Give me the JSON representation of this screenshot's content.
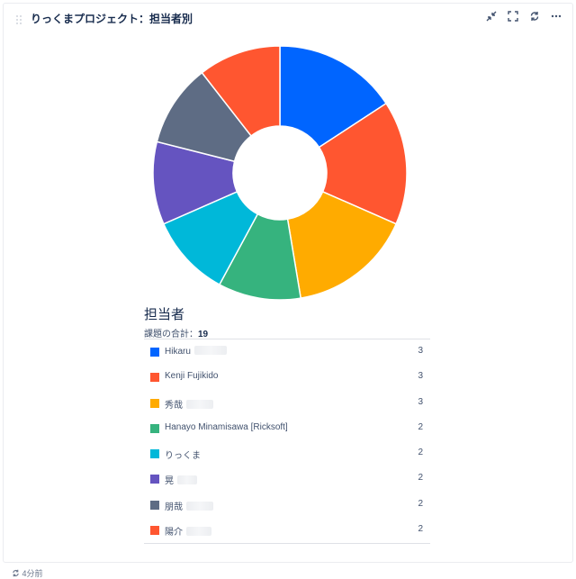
{
  "gadget": {
    "title": "りっくまプロジェクト：担当者別",
    "icons": [
      "drag-handle-icon",
      "minimize-icon",
      "fullscreen-icon",
      "refresh-icon",
      "more-icon"
    ]
  },
  "legend": {
    "title": "担当者",
    "total_label": "課題の合計：",
    "total_value": "19"
  },
  "footer": {
    "updated": "4分前"
  },
  "chart_data": {
    "type": "pie",
    "donut": true,
    "title": "",
    "slices": [
      {
        "label": "Hikaru",
        "value": 3,
        "color": "#0065ff"
      },
      {
        "label": "Kenji Fujikido",
        "value": 3,
        "color": "#ff5630"
      },
      {
        "label": "秀哉",
        "value": 3,
        "color": "#ffab00"
      },
      {
        "label": "Hanayo Minamisawa [Ricksoft]",
        "value": 2,
        "color": "#36b37e"
      },
      {
        "label": "りっくま",
        "value": 2,
        "color": "#00b8d9"
      },
      {
        "label": "晃",
        "value": 2,
        "color": "#6554c0"
      },
      {
        "label": "朋哉",
        "value": 2,
        "color": "#5e6c84"
      },
      {
        "label": "陽介",
        "value": 2,
        "color": "#ff5630"
      }
    ]
  }
}
